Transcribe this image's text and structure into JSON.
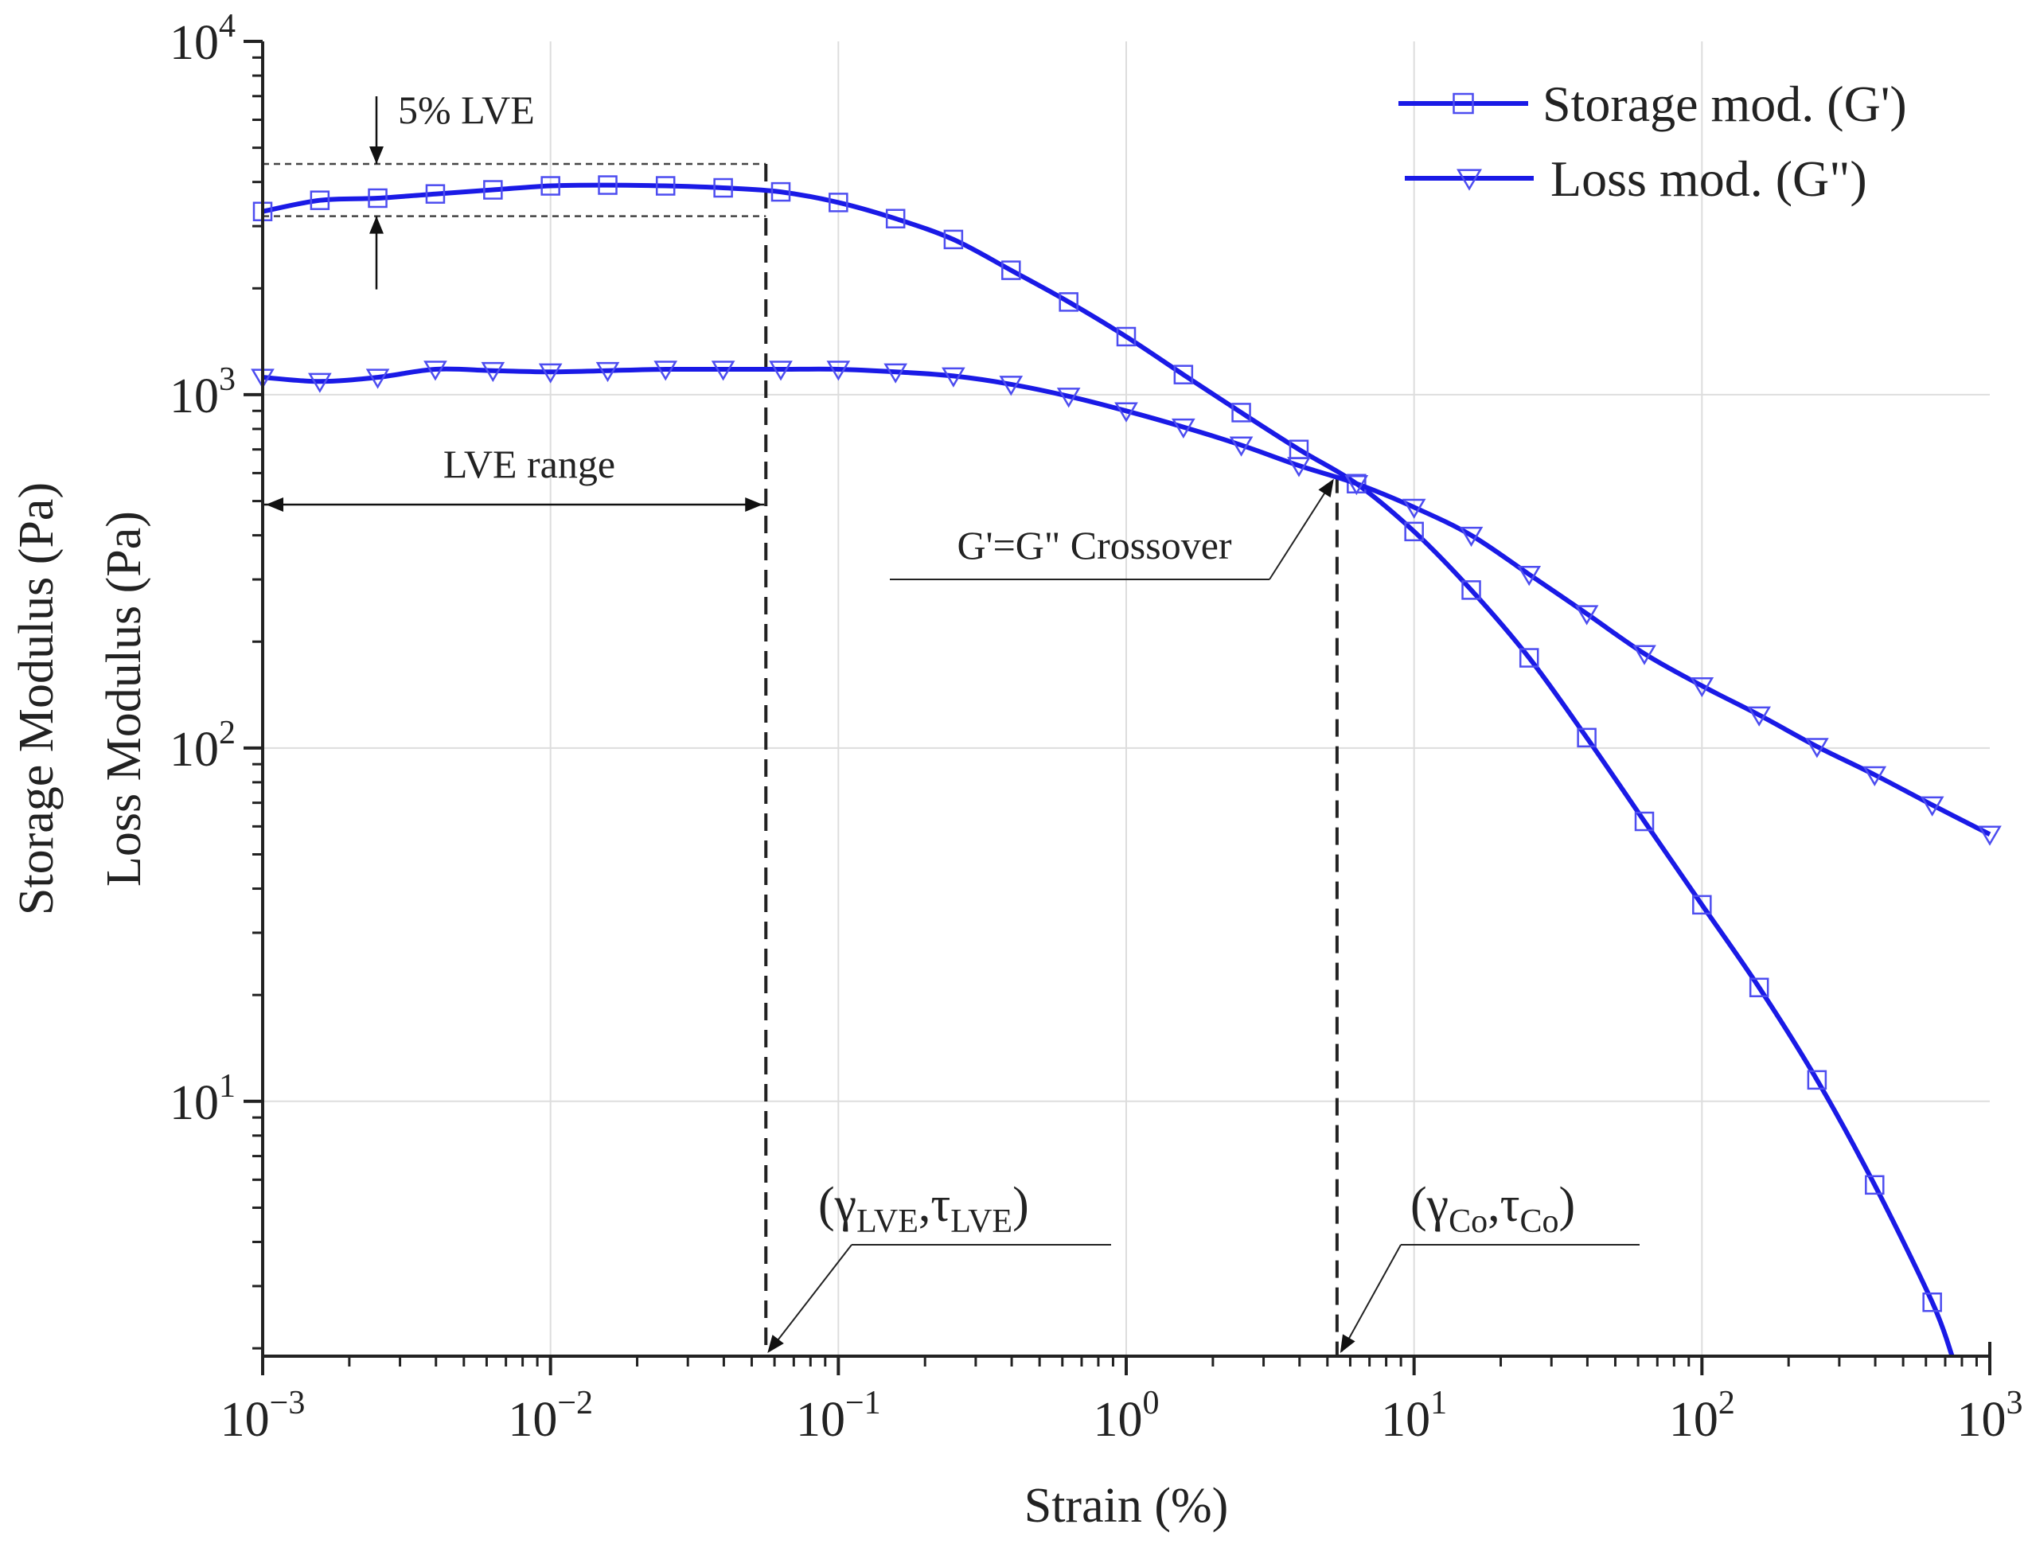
{
  "chart_data": {
    "type": "line",
    "xscale": "log",
    "yscale": "log",
    "xlim": [
      0.001,
      1000
    ],
    "ylim": [
      1.9,
      10000
    ],
    "xlabel": "Strain (%)",
    "ylabel_lines": [
      "Storage Modulus (Pa)",
      "Loss Modulus (Pa)"
    ],
    "x_ticks": [
      {
        "base": "10",
        "exp": "−3",
        "value": 0.001
      },
      {
        "base": "10",
        "exp": "−2",
        "value": 0.01
      },
      {
        "base": "10",
        "exp": "−1",
        "value": 0.1
      },
      {
        "base": "10",
        "exp": "0",
        "value": 1
      },
      {
        "base": "10",
        "exp": "1",
        "value": 10
      },
      {
        "base": "10",
        "exp": "2",
        "value": 100
      },
      {
        "base": "10",
        "exp": "3",
        "value": 1000
      }
    ],
    "y_ticks": [
      {
        "base": "10",
        "exp": "1",
        "value": 10
      },
      {
        "base": "10",
        "exp": "2",
        "value": 100
      },
      {
        "base": "10",
        "exp": "3",
        "value": 1000
      },
      {
        "base": "10",
        "exp": "4",
        "value": 10000
      }
    ],
    "colors": {
      "series": "#1a1ae6",
      "marker": "#4d4df0",
      "text": "#222222",
      "grid": "#dddddd"
    },
    "series": [
      {
        "name": "Storage mod. (G')",
        "marker": "square",
        "x": [
          0.001,
          0.00158,
          0.00251,
          0.00398,
          0.00631,
          0.01,
          0.0158,
          0.0251,
          0.0398,
          0.0631,
          0.1,
          0.158,
          0.251,
          0.398,
          0.631,
          1.0,
          1.58,
          2.51,
          3.98,
          6.31,
          10,
          15.8,
          25.1,
          39.8,
          63.1,
          100,
          158,
          251,
          398,
          631
        ],
        "values": [
          3300,
          3550,
          3600,
          3700,
          3800,
          3900,
          3920,
          3900,
          3850,
          3750,
          3500,
          3150,
          2750,
          2250,
          1830,
          1460,
          1140,
          890,
          700,
          560,
          410,
          280,
          180,
          107,
          62,
          36,
          21,
          11.5,
          5.8,
          2.7
        ],
        "curve_end": {
          "x": 740,
          "y": 1.9
        }
      },
      {
        "name": "Loss mod. (G\")",
        "marker": "triangle-down",
        "x": [
          0.001,
          0.00158,
          0.00251,
          0.00398,
          0.00631,
          0.01,
          0.0158,
          0.0251,
          0.0398,
          0.0631,
          0.1,
          0.158,
          0.251,
          0.398,
          0.631,
          1.0,
          1.58,
          2.51,
          3.98,
          6.31,
          10,
          15.8,
          25.1,
          39.8,
          63.1,
          100,
          158,
          251,
          398,
          631,
          1000
        ],
        "values": [
          1120,
          1090,
          1120,
          1180,
          1170,
          1160,
          1170,
          1180,
          1180,
          1180,
          1180,
          1160,
          1130,
          1070,
          990,
          900,
          810,
          720,
          630,
          560,
          480,
          400,
          310,
          240,
          185,
          150,
          124,
          101,
          84,
          69,
          57
        ]
      }
    ],
    "legend": {
      "placement": "top-right"
    },
    "annotations": {
      "lve_5pct": "5% LVE",
      "lve_range": "LVE range",
      "crossover": "G'=G\" Crossover",
      "gamma": "γ",
      "tau": "τ",
      "lve_sub": "LVE",
      "co_sub": "Co",
      "open_paren": "(",
      "comma": ",",
      "close_paren": ")"
    },
    "markers_ref": {
      "lve_upper": 4500,
      "lve_lower": 3200,
      "lve_strain": 0.056,
      "crossover_strain": 5.4,
      "crossover_modulus": 590
    }
  }
}
